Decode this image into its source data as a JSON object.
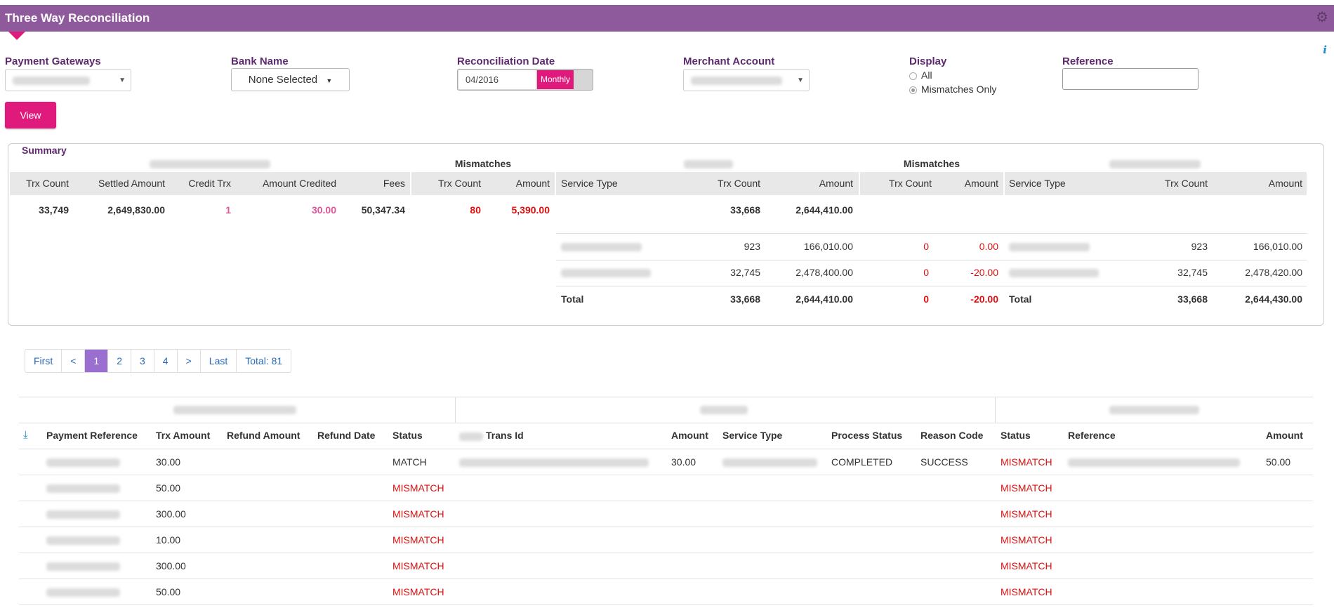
{
  "header": {
    "title": "Three Way Reconciliation"
  },
  "filters": {
    "payment_gateways_label": "Payment Gateways",
    "bank_name_label": "Bank Name",
    "bank_name_value": "None Selected",
    "reconciliation_date_label": "Reconciliation Date",
    "reconciliation_date_value": "04/2016",
    "period_button": "Monthly",
    "merchant_account_label": "Merchant Account",
    "display_label": "Display",
    "display_options": [
      "All",
      "Mismatches Only"
    ],
    "display_selected": "Mismatches Only",
    "reference_label": "Reference",
    "reference_value": "",
    "view_button": "View"
  },
  "summary": {
    "title": "Summary",
    "mismatches_label": "Mismatches",
    "gateway_headers": [
      "Trx Count",
      "Settled Amount",
      "Credit Trx",
      "Amount Credited",
      "Fees"
    ],
    "gateway_values": [
      "33,749",
      "2,649,830.00",
      "1",
      "30.00",
      "50,347.34"
    ],
    "mismatch1_headers": [
      "Trx Count",
      "Amount"
    ],
    "mismatch1_values": [
      "80",
      "5,390.00"
    ],
    "payment_headers": [
      "Service Type",
      "Trx Count",
      "Amount"
    ],
    "payment_top": [
      "33,668",
      "2,644,410.00"
    ],
    "payment_rows": [
      {
        "count": "923",
        "amount": "166,010.00"
      },
      {
        "count": "32,745",
        "amount": "2,478,400.00"
      }
    ],
    "payment_total": {
      "label": "Total",
      "count": "33,668",
      "amount": "2,644,410.00"
    },
    "mismatch2_headers": [
      "Trx Count",
      "Amount"
    ],
    "mismatch2_rows": [
      {
        "count": "0",
        "amount": "0.00"
      },
      {
        "count": "0",
        "amount": "-20.00"
      }
    ],
    "mismatch2_total": {
      "count": "0",
      "amount": "-20.00"
    },
    "backend_headers": [
      "Service Type",
      "Trx Count",
      "Amount"
    ],
    "backend_rows": [
      {
        "count": "923",
        "amount": "166,010.00"
      },
      {
        "count": "32,745",
        "amount": "2,478,420.00"
      }
    ],
    "backend_total": {
      "label": "Total",
      "count": "33,668",
      "amount": "2,644,430.00"
    }
  },
  "pagination": {
    "items": [
      "First",
      "<",
      "1",
      "2",
      "3",
      "4",
      ">",
      "Last",
      "Total: 81"
    ],
    "active": "1"
  },
  "detail": {
    "headers_left": [
      "Payment Reference",
      "Trx Amount",
      "Refund Amount",
      "Refund Date",
      "Status"
    ],
    "headers_mid": [
      "Trans Id",
      "Amount",
      "Service Type",
      "Process Status",
      "Reason Code"
    ],
    "headers_right": [
      "Status",
      "Reference",
      "Amount"
    ],
    "rows": [
      {
        "trx_amount": "30.00",
        "status": "MATCH",
        "amount": "30.00",
        "process_status": "COMPLETED",
        "reason_code": "SUCCESS",
        "status2": "MISMATCH",
        "amount2": "50.00"
      },
      {
        "trx_amount": "50.00",
        "status": "MISMATCH",
        "status2": "MISMATCH"
      },
      {
        "trx_amount": "300.00",
        "status": "MISMATCH",
        "status2": "MISMATCH"
      },
      {
        "trx_amount": "10.00",
        "status": "MISMATCH",
        "status2": "MISMATCH"
      },
      {
        "trx_amount": "300.00",
        "status": "MISMATCH",
        "status2": "MISMATCH"
      },
      {
        "trx_amount": "50.00",
        "status": "MISMATCH",
        "status2": "MISMATCH"
      }
    ]
  },
  "colors": {
    "header_bg": "#8e5a9b",
    "accent": "#e0197d",
    "label": "#5e2a6e",
    "mismatch": "#e01010",
    "pager_active": "#9b6fd0"
  }
}
